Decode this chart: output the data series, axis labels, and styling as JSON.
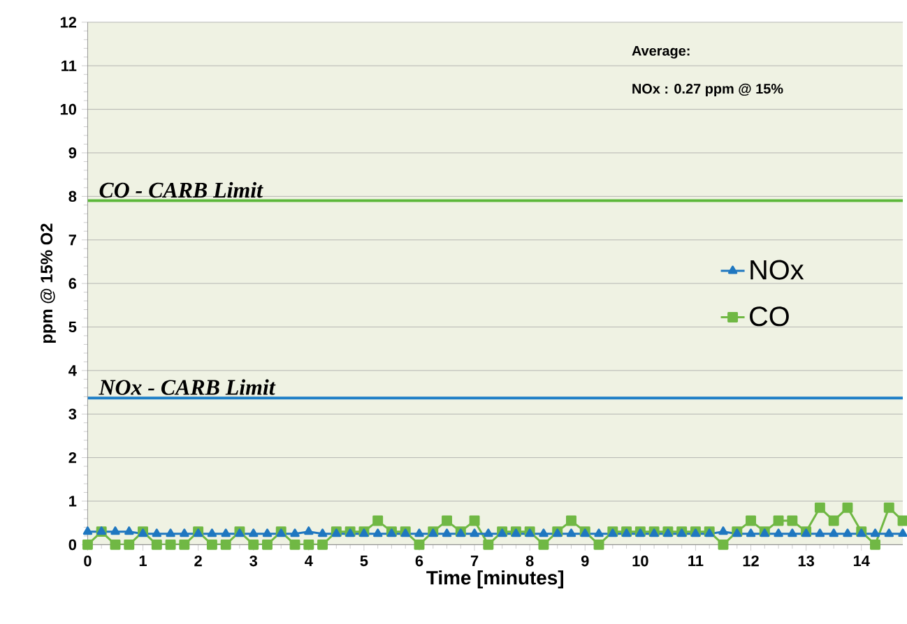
{
  "chart_data": {
    "type": "line",
    "xlabel": "Time [minutes]",
    "ylabel": "ppm @ 15% O2",
    "annotations": [
      "Average:",
      "NOx : 0.27 ppm @ 15%"
    ],
    "x": [
      0,
      0.25,
      0.5,
      0.75,
      1,
      1.25,
      1.5,
      1.75,
      2,
      2.25,
      2.5,
      2.75,
      3,
      3.25,
      3.5,
      3.75,
      4,
      4.25,
      4.5,
      4.75,
      5,
      5.25,
      5.5,
      5.75,
      6,
      6.25,
      6.5,
      6.75,
      7,
      7.25,
      7.5,
      7.75,
      8,
      8.25,
      8.5,
      8.75,
      9,
      9.25,
      9.5,
      9.75,
      10,
      10.25,
      10.5,
      10.75,
      11,
      11.25,
      11.5,
      11.75,
      12,
      12.25,
      12.5,
      12.75,
      13,
      13.25,
      13.5,
      13.75,
      14,
      14.25,
      14.5,
      14.75
    ],
    "series": [
      {
        "name": "NOx",
        "color": "#1f77c0",
        "marker": "triangle",
        "values": [
          0.3,
          0.3,
          0.3,
          0.3,
          0.25,
          0.25,
          0.25,
          0.25,
          0.25,
          0.25,
          0.25,
          0.25,
          0.25,
          0.25,
          0.25,
          0.25,
          0.3,
          0.25,
          0.25,
          0.25,
          0.25,
          0.25,
          0.25,
          0.25,
          0.25,
          0.25,
          0.25,
          0.25,
          0.25,
          0.25,
          0.25,
          0.25,
          0.25,
          0.25,
          0.25,
          0.25,
          0.25,
          0.25,
          0.25,
          0.25,
          0.25,
          0.25,
          0.25,
          0.25,
          0.25,
          0.25,
          0.3,
          0.25,
          0.25,
          0.25,
          0.25,
          0.25,
          0.25,
          0.25,
          0.25,
          0.25,
          0.25,
          0.25,
          0.25,
          0.25
        ]
      },
      {
        "name": "CO",
        "color": "#70b844",
        "marker": "square",
        "values": [
          0,
          0.3,
          0,
          0,
          0.3,
          0,
          0,
          0,
          0.3,
          0,
          0,
          0.3,
          0,
          0,
          0.3,
          0,
          0,
          0,
          0.3,
          0.3,
          0.3,
          0.55,
          0.3,
          0.3,
          0,
          0.3,
          0.55,
          0.3,
          0.55,
          0,
          0.3,
          0.3,
          0.3,
          0,
          0.3,
          0.55,
          0.3,
          0,
          0.3,
          0.3,
          0.3,
          0.3,
          0.3,
          0.3,
          0.3,
          0.3,
          0,
          0.3,
          0.55,
          0.3,
          0.55,
          0.55,
          0.3,
          0.85,
          0.55,
          0.85,
          0.3,
          0,
          0.85,
          0.55
        ]
      }
    ],
    "ref_lines": [
      {
        "axis": "y",
        "value": 7.9,
        "label": "CO - CARB Limit",
        "color": "#5cb83a"
      },
      {
        "axis": "y",
        "value": 3.37,
        "label": "NOx - CARB Limit",
        "color": "#1f7fc7"
      }
    ],
    "xlim": [
      0,
      14.75
    ],
    "ylim": [
      0,
      12
    ],
    "xticks": [
      0,
      1,
      2,
      3,
      4,
      5,
      6,
      7,
      8,
      9,
      10,
      11,
      12,
      13,
      14
    ],
    "yticks": [
      0,
      1,
      2,
      3,
      4,
      5,
      6,
      7,
      8,
      9,
      10,
      11,
      12
    ],
    "grid": "y",
    "legend": "right"
  }
}
